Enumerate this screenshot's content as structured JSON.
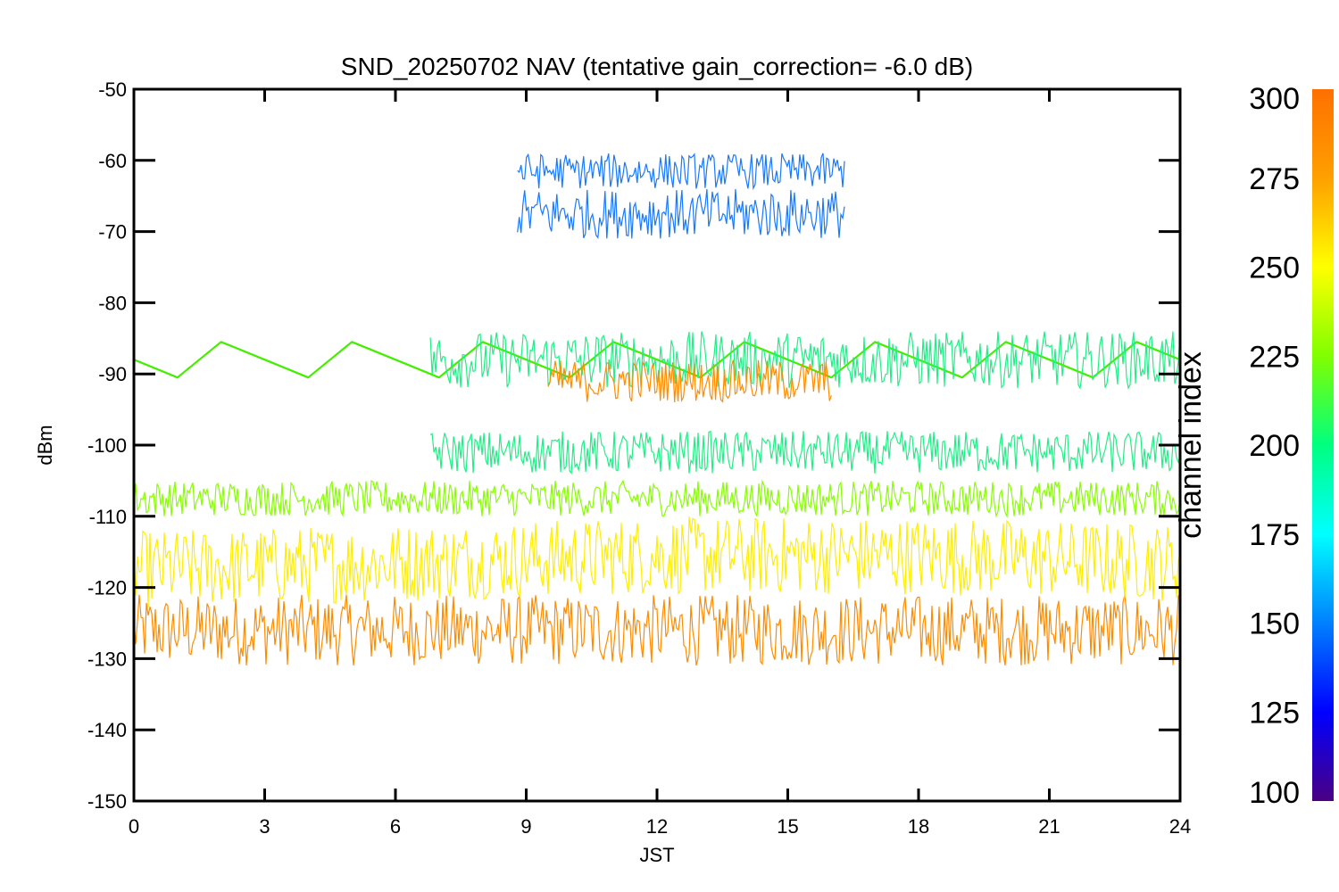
{
  "chart_data": {
    "type": "line",
    "title": "SND_20250702 NAV (tentative gain_correction= -6.0 dB)",
    "xlabel": "JST",
    "ylabel": "dBm",
    "xlim": [
      0,
      24
    ],
    "ylim": [
      -150,
      -50
    ],
    "x_ticks": [
      0,
      3,
      6,
      9,
      12,
      15,
      18,
      21,
      24
    ],
    "y_ticks": [
      -50,
      -60,
      -70,
      -80,
      -90,
      -100,
      -110,
      -120,
      -130,
      -140,
      -150
    ],
    "grid": false,
    "colorbar": {
      "label": "channel index",
      "range": [
        100,
        300
      ],
      "ticks": [
        300,
        275,
        250,
        225,
        200,
        175,
        150,
        125,
        100
      ],
      "colors": [
        "#4b0082",
        "#0000ff",
        "#0080ff",
        "#00ffff",
        "#00ff80",
        "#80ff00",
        "#ffff00",
        "#ffa000",
        "#ff7000"
      ]
    },
    "series": [
      {
        "channel": 290,
        "color": "#ff8c00",
        "x": [
          0,
          6,
          12,
          18,
          24
        ],
        "y": [
          -126,
          -126,
          -126,
          -126,
          -126
        ],
        "band": [
          -131,
          -121
        ]
      },
      {
        "channel": 270,
        "color": "#ffee00",
        "x": [
          0,
          6,
          12,
          18,
          24
        ],
        "y": [
          -119,
          -118,
          -117,
          -117,
          -118
        ],
        "band": [
          -123,
          -112
        ]
      },
      {
        "channel": 245,
        "color": "#88ff00",
        "x": [
          0,
          6,
          12,
          18,
          24
        ],
        "y": [
          -108,
          -108,
          -108,
          -108,
          -108
        ],
        "band": [
          -110,
          -105
        ]
      },
      {
        "channel": 240,
        "color": "#44ee00",
        "x": [
          0,
          1,
          2,
          3,
          4,
          5,
          6,
          7,
          8,
          9,
          10,
          11,
          12,
          13,
          14,
          15,
          16,
          17,
          18,
          19,
          20,
          21,
          22,
          23,
          24
        ],
        "y": [
          -88,
          -90.5,
          -85.5,
          -88,
          -90.5,
          -85.5,
          -88,
          -90.5,
          -85.5,
          -88,
          -90.5,
          -85.5,
          -88,
          -90.5,
          -85.5,
          -88,
          -90.5,
          -85.5,
          -88,
          -90.5,
          -85.5,
          -88,
          -90.5,
          -85.5,
          -88
        ]
      },
      {
        "channel": 215,
        "color": "#22ee88",
        "x": [
          6.8,
          24
        ],
        "y": [
          -88,
          -88
        ],
        "band": [
          -92,
          -84
        ]
      },
      {
        "channel": 205,
        "color": "#22ee88",
        "x": [
          6.8,
          24
        ],
        "y": [
          -101,
          -101
        ],
        "band": [
          -104,
          -98
        ]
      },
      {
        "channel": 160,
        "color": "#1a78ff",
        "x": [
          8.8,
          16.3
        ],
        "y": [
          -61,
          -61
        ],
        "band": [
          -64,
          -59
        ]
      },
      {
        "channel": 160,
        "color": "#1a78ff",
        "x": [
          8.8,
          16.3
        ],
        "y": [
          -67,
          -67
        ],
        "band": [
          -71,
          -64
        ]
      },
      {
        "channel": 285,
        "color": "#ff8c00",
        "x": [
          9.5,
          16
        ],
        "y": [
          -90,
          -90
        ],
        "band": [
          -94,
          -88
        ]
      }
    ]
  }
}
